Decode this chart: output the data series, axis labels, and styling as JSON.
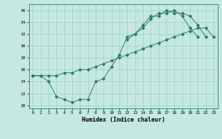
{
  "title": "",
  "xlabel": "Humidex (Indice chaleur)",
  "ylabel": "",
  "xlim": [
    -0.5,
    23.5
  ],
  "ylim": [
    19.5,
    37.0
  ],
  "xticks": [
    0,
    1,
    2,
    3,
    4,
    5,
    6,
    7,
    8,
    9,
    10,
    11,
    12,
    13,
    14,
    15,
    16,
    17,
    18,
    19,
    20,
    21,
    22,
    23
  ],
  "yticks": [
    20,
    22,
    24,
    26,
    28,
    30,
    32,
    34,
    36
  ],
  "bg_color": "#c5e8e0",
  "grid_color": "#9ecfc5",
  "line_color": "#2a7a6a",
  "series": [
    {
      "x": [
        0,
        1,
        2,
        3,
        4,
        5,
        6,
        7,
        8,
        9,
        10,
        11,
        12,
        13,
        14,
        15,
        16,
        17,
        18,
        19,
        20,
        21
      ],
      "y": [
        25.0,
        25.0,
        24.0,
        21.5,
        21.0,
        20.5,
        21.0,
        21.0,
        24.0,
        24.5,
        26.5,
        28.5,
        31.5,
        32.0,
        33.0,
        34.5,
        35.5,
        35.5,
        36.0,
        35.0,
        33.0,
        31.5
      ]
    },
    {
      "x": [
        0,
        1,
        2,
        3,
        4,
        5,
        6,
        7,
        8,
        9,
        10,
        11,
        12,
        13,
        14,
        15,
        16,
        17,
        18,
        19,
        20,
        21,
        22,
        23
      ],
      "y": [
        25.0,
        25.0,
        25.0,
        25.0,
        25.5,
        25.5,
        26.0,
        26.0,
        26.5,
        27.0,
        27.5,
        28.0,
        28.5,
        29.0,
        29.5,
        30.0,
        30.5,
        31.0,
        31.5,
        32.0,
        32.5,
        33.0,
        33.0,
        31.5
      ]
    },
    {
      "x": [
        12,
        13,
        14,
        15,
        16,
        17,
        18,
        19,
        20,
        21,
        22
      ],
      "y": [
        31.0,
        32.0,
        33.5,
        35.0,
        35.0,
        36.0,
        35.5,
        35.5,
        35.0,
        33.5,
        31.5
      ]
    }
  ]
}
